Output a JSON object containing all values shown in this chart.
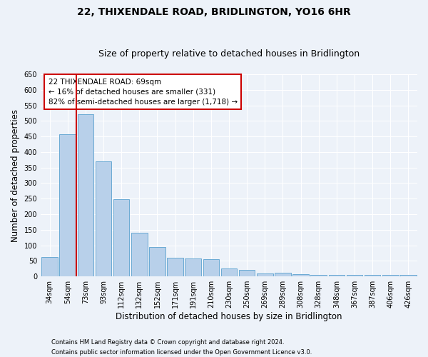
{
  "title": "22, THIXENDALE ROAD, BRIDLINGTON, YO16 6HR",
  "subtitle": "Size of property relative to detached houses in Bridlington",
  "xlabel": "Distribution of detached houses by size in Bridlington",
  "ylabel": "Number of detached properties",
  "categories": [
    "34sqm",
    "54sqm",
    "73sqm",
    "93sqm",
    "112sqm",
    "132sqm",
    "152sqm",
    "171sqm",
    "191sqm",
    "210sqm",
    "230sqm",
    "250sqm",
    "269sqm",
    "289sqm",
    "308sqm",
    "328sqm",
    "348sqm",
    "367sqm",
    "387sqm",
    "406sqm",
    "426sqm"
  ],
  "values": [
    62,
    457,
    521,
    370,
    248,
    140,
    95,
    60,
    58,
    55,
    25,
    22,
    10,
    12,
    7,
    6,
    6,
    5,
    5,
    5,
    4
  ],
  "bar_color": "#b8d0ea",
  "bar_edge_color": "#6aaad4",
  "vline_x": 1.5,
  "vline_color": "#cc0000",
  "annotation_text": "22 THIXENDALE ROAD: 69sqm\n← 16% of detached houses are smaller (331)\n82% of semi-detached houses are larger (1,718) →",
  "annotation_box_color": "#ffffff",
  "annotation_box_edge_color": "#cc0000",
  "ylim": [
    0,
    650
  ],
  "yticks": [
    0,
    50,
    100,
    150,
    200,
    250,
    300,
    350,
    400,
    450,
    500,
    550,
    600,
    650
  ],
  "footer_line1": "Contains HM Land Registry data © Crown copyright and database right 2024.",
  "footer_line2": "Contains public sector information licensed under the Open Government Licence v3.0.",
  "bg_color": "#edf2f9",
  "plot_bg_color": "#edf2f9",
  "grid_color": "#ffffff",
  "title_fontsize": 10,
  "subtitle_fontsize": 9,
  "axis_label_fontsize": 8.5,
  "tick_fontsize": 7,
  "annotation_fontsize": 7.5,
  "footer_fontsize": 6
}
